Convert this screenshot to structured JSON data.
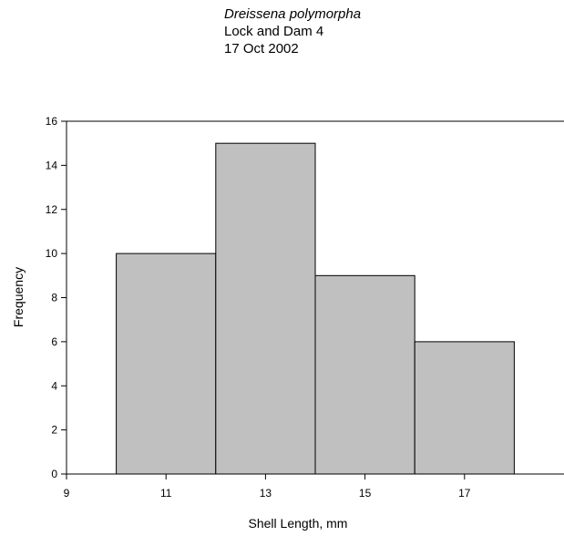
{
  "title_lines": {
    "species": "Dreissena polymorpha",
    "site": "Lock and Dam 4",
    "date": "17 Oct 2002"
  },
  "chart_data": {
    "type": "bar",
    "subtype": "histogram",
    "title": "Dreissena polymorpha / Lock and Dam 4 / 17 Oct 2002",
    "xlabel": "Shell Length, mm",
    "ylabel": "Frequency",
    "bins": [
      {
        "center": 11,
        "start": 10,
        "end": 12,
        "value": 10
      },
      {
        "center": 13,
        "start": 12,
        "end": 14,
        "value": 15
      },
      {
        "center": 15,
        "start": 14,
        "end": 16,
        "value": 9
      },
      {
        "center": 17,
        "start": 16,
        "end": 18,
        "value": 6
      }
    ],
    "xlim": [
      9,
      19
    ],
    "ylim": [
      0,
      16
    ],
    "xticks": [
      9,
      11,
      13,
      15,
      17
    ],
    "yticks": [
      0,
      2,
      4,
      6,
      8,
      10,
      12,
      14,
      16
    ],
    "bar_color": "#c0c0c0",
    "grid": false,
    "legend": "none"
  }
}
